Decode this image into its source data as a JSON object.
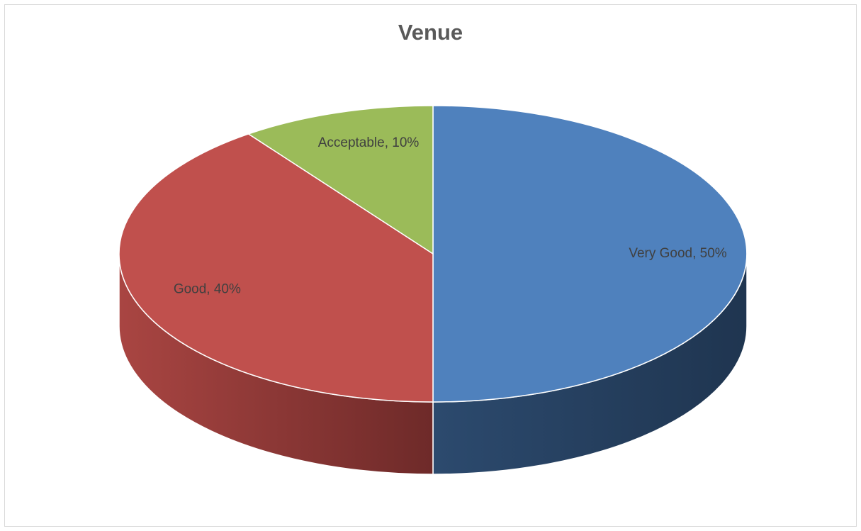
{
  "chart_data": {
    "type": "pie",
    "title": "Venue",
    "style": "3d",
    "categories": [
      "Very Good",
      "Good",
      "Acceptable"
    ],
    "values": [
      50,
      40,
      10
    ],
    "labels": [
      "Very Good, 50%",
      "Good, 40%",
      "Acceptable, 10%"
    ],
    "colors": [
      "#4f81bd",
      "#c0504d",
      "#9bbb59"
    ],
    "side_colors": [
      "#1f3550",
      "#6e2a29",
      "#5d7a30"
    ],
    "legend": "none"
  }
}
